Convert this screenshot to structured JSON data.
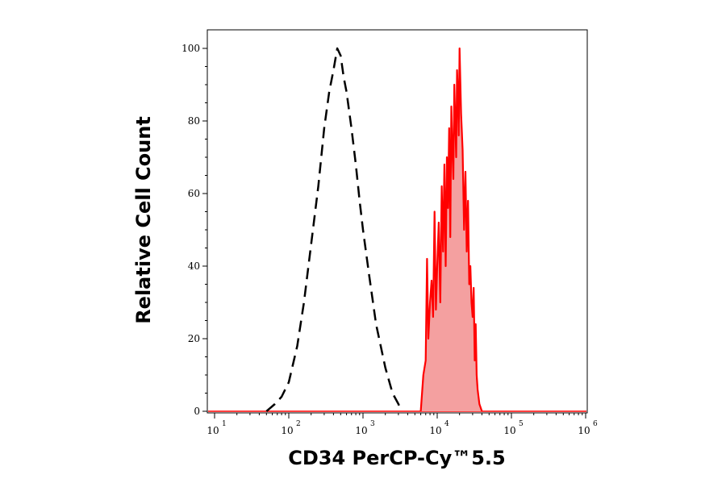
{
  "chart_data": {
    "type": "area",
    "title": "",
    "xlabel": "CD34 PerCP-Cy™5.5",
    "ylabel": "Relative Cell Count",
    "x_scale": "log",
    "xlim": [
      10,
      1000000
    ],
    "ylim": [
      0,
      100
    ],
    "x_ticks": [
      {
        "base": "10",
        "exp": "1"
      },
      {
        "base": "10",
        "exp": "2"
      },
      {
        "base": "10",
        "exp": "3"
      },
      {
        "base": "10",
        "exp": "4"
      },
      {
        "base": "10",
        "exp": "5"
      },
      {
        "base": "10",
        "exp": "6"
      }
    ],
    "y_ticks": [
      "0",
      "20",
      "40",
      "60",
      "80",
      "100"
    ],
    "grid": false,
    "series": [
      {
        "style": "dashed",
        "color": "#000000",
        "filled": false,
        "x": [
          50,
          65,
          80,
          100,
          130,
          160,
          200,
          250,
          300,
          350,
          400,
          450,
          500,
          550,
          600,
          700,
          800,
          900,
          1000,
          1200,
          1500,
          2000,
          2500,
          3000,
          3300
        ],
        "y": [
          0,
          2,
          4,
          8,
          18,
          30,
          46,
          62,
          78,
          88,
          94,
          100,
          98,
          92,
          88,
          78,
          68,
          58,
          50,
          38,
          24,
          12,
          5,
          2,
          0
        ]
      },
      {
        "style": "solid",
        "color": "#ff0000",
        "fill": "#f4a0a0",
        "filled": true,
        "x": [
          6000,
          6500,
          7000,
          7300,
          7600,
          8000,
          8400,
          8800,
          9200,
          9600,
          10000,
          10500,
          11000,
          11500,
          12000,
          12500,
          13000,
          13500,
          14000,
          14500,
          15000,
          15500,
          16000,
          16500,
          17000,
          17500,
          18000,
          18500,
          19000,
          19500,
          20000,
          21000,
          22000,
          23000,
          24000,
          25000,
          26000,
          27000,
          28000,
          29000,
          30000,
          31000,
          32000,
          33000,
          34000,
          35000,
          37000,
          40000
        ],
        "y": [
          0,
          10,
          14,
          42,
          20,
          30,
          36,
          26,
          55,
          28,
          40,
          52,
          30,
          62,
          44,
          68,
          40,
          70,
          56,
          78,
          48,
          84,
          72,
          64,
          90,
          80,
          70,
          94,
          88,
          76,
          100,
          82,
          72,
          50,
          66,
          44,
          58,
          35,
          40,
          30,
          26,
          34,
          14,
          24,
          10,
          6,
          2,
          0
        ]
      }
    ]
  }
}
